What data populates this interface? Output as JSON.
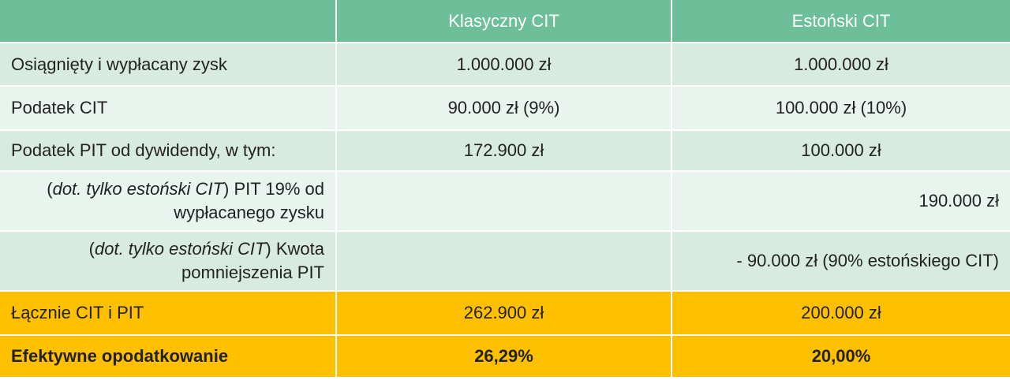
{
  "table": {
    "header": [
      "Klasyczny CIT",
      "Estoński CIT"
    ],
    "rows": [
      [
        "Osiągnięty i wypłacany zysk",
        "1.000.000 zł",
        "1.000.000 zł"
      ],
      [
        "Podatek CIT",
        "90.000 zł (9%)",
        "100.000 zł (10%)"
      ],
      [
        "Podatek PIT od dywidendy, w tym:",
        "172.900 zł",
        "100.000 zł"
      ],
      [
        {
          "open": "(",
          "italic": "dot. tylko estoński CIT",
          "rest": ") PIT 19% od wypłacanego zysku"
        },
        null,
        "190.000 zł"
      ],
      [
        {
          "open": "(",
          "italic": "dot. tylko estoński CIT",
          "rest": ") Kwota pomniejszenia PIT"
        },
        null,
        "- 90.000 zł (90% estońskiego CIT)"
      ],
      [
        "Łącznie CIT i PIT",
        "262.900 zł",
        "200.000 zł"
      ],
      [
        "Efektywne opodatkowanie",
        "26,29%",
        "20,00%"
      ]
    ]
  }
}
